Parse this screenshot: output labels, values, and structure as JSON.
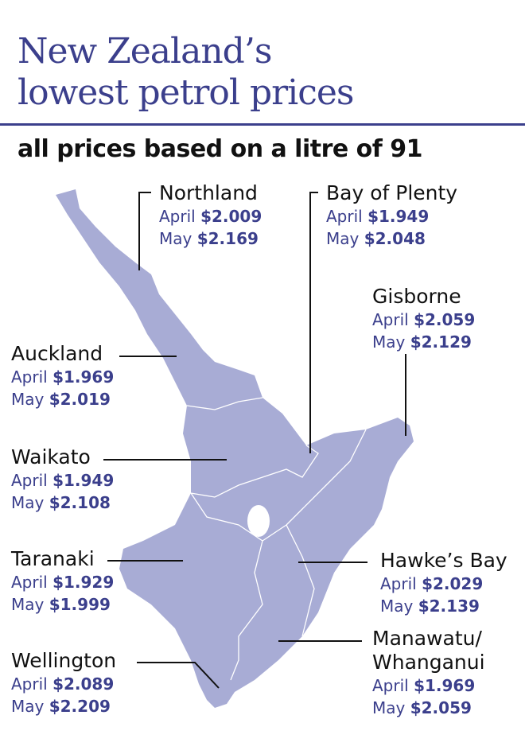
{
  "title_lines": [
    "New Zealand’s",
    "lowest petrol prices"
  ],
  "subtitle": "all prices based on a litre of 91",
  "april_label": "April",
  "may_label": "May",
  "regions": [
    {
      "name_lines": [
        "Northland"
      ],
      "april": "$2.009",
      "may": "$2.169"
    },
    {
      "name_lines": [
        "Bay of Plenty"
      ],
      "april": "$1.949",
      "may": "$2.048"
    },
    {
      "name_lines": [
        "Gisborne"
      ],
      "april": "$2.059",
      "may": "$2.129"
    },
    {
      "name_lines": [
        "Auckland"
      ],
      "april": "$1.969",
      "may": "$2.019"
    },
    {
      "name_lines": [
        "Waikato"
      ],
      "april": "$1.949",
      "may": "$2.108"
    },
    {
      "name_lines": [
        "Taranaki"
      ],
      "april": "$1.929",
      "may": "$1.999"
    },
    {
      "name_lines": [
        "Hawke’s Bay"
      ],
      "april": "$2.029",
      "may": "$2.139"
    },
    {
      "name_lines": [
        "Manawatu/",
        "Whanganui"
      ],
      "april": "$1.969",
      "may": "$2.059"
    },
    {
      "name_lines": [
        "Wellington"
      ],
      "april": "$2.089",
      "may": "$2.209"
    }
  ]
}
